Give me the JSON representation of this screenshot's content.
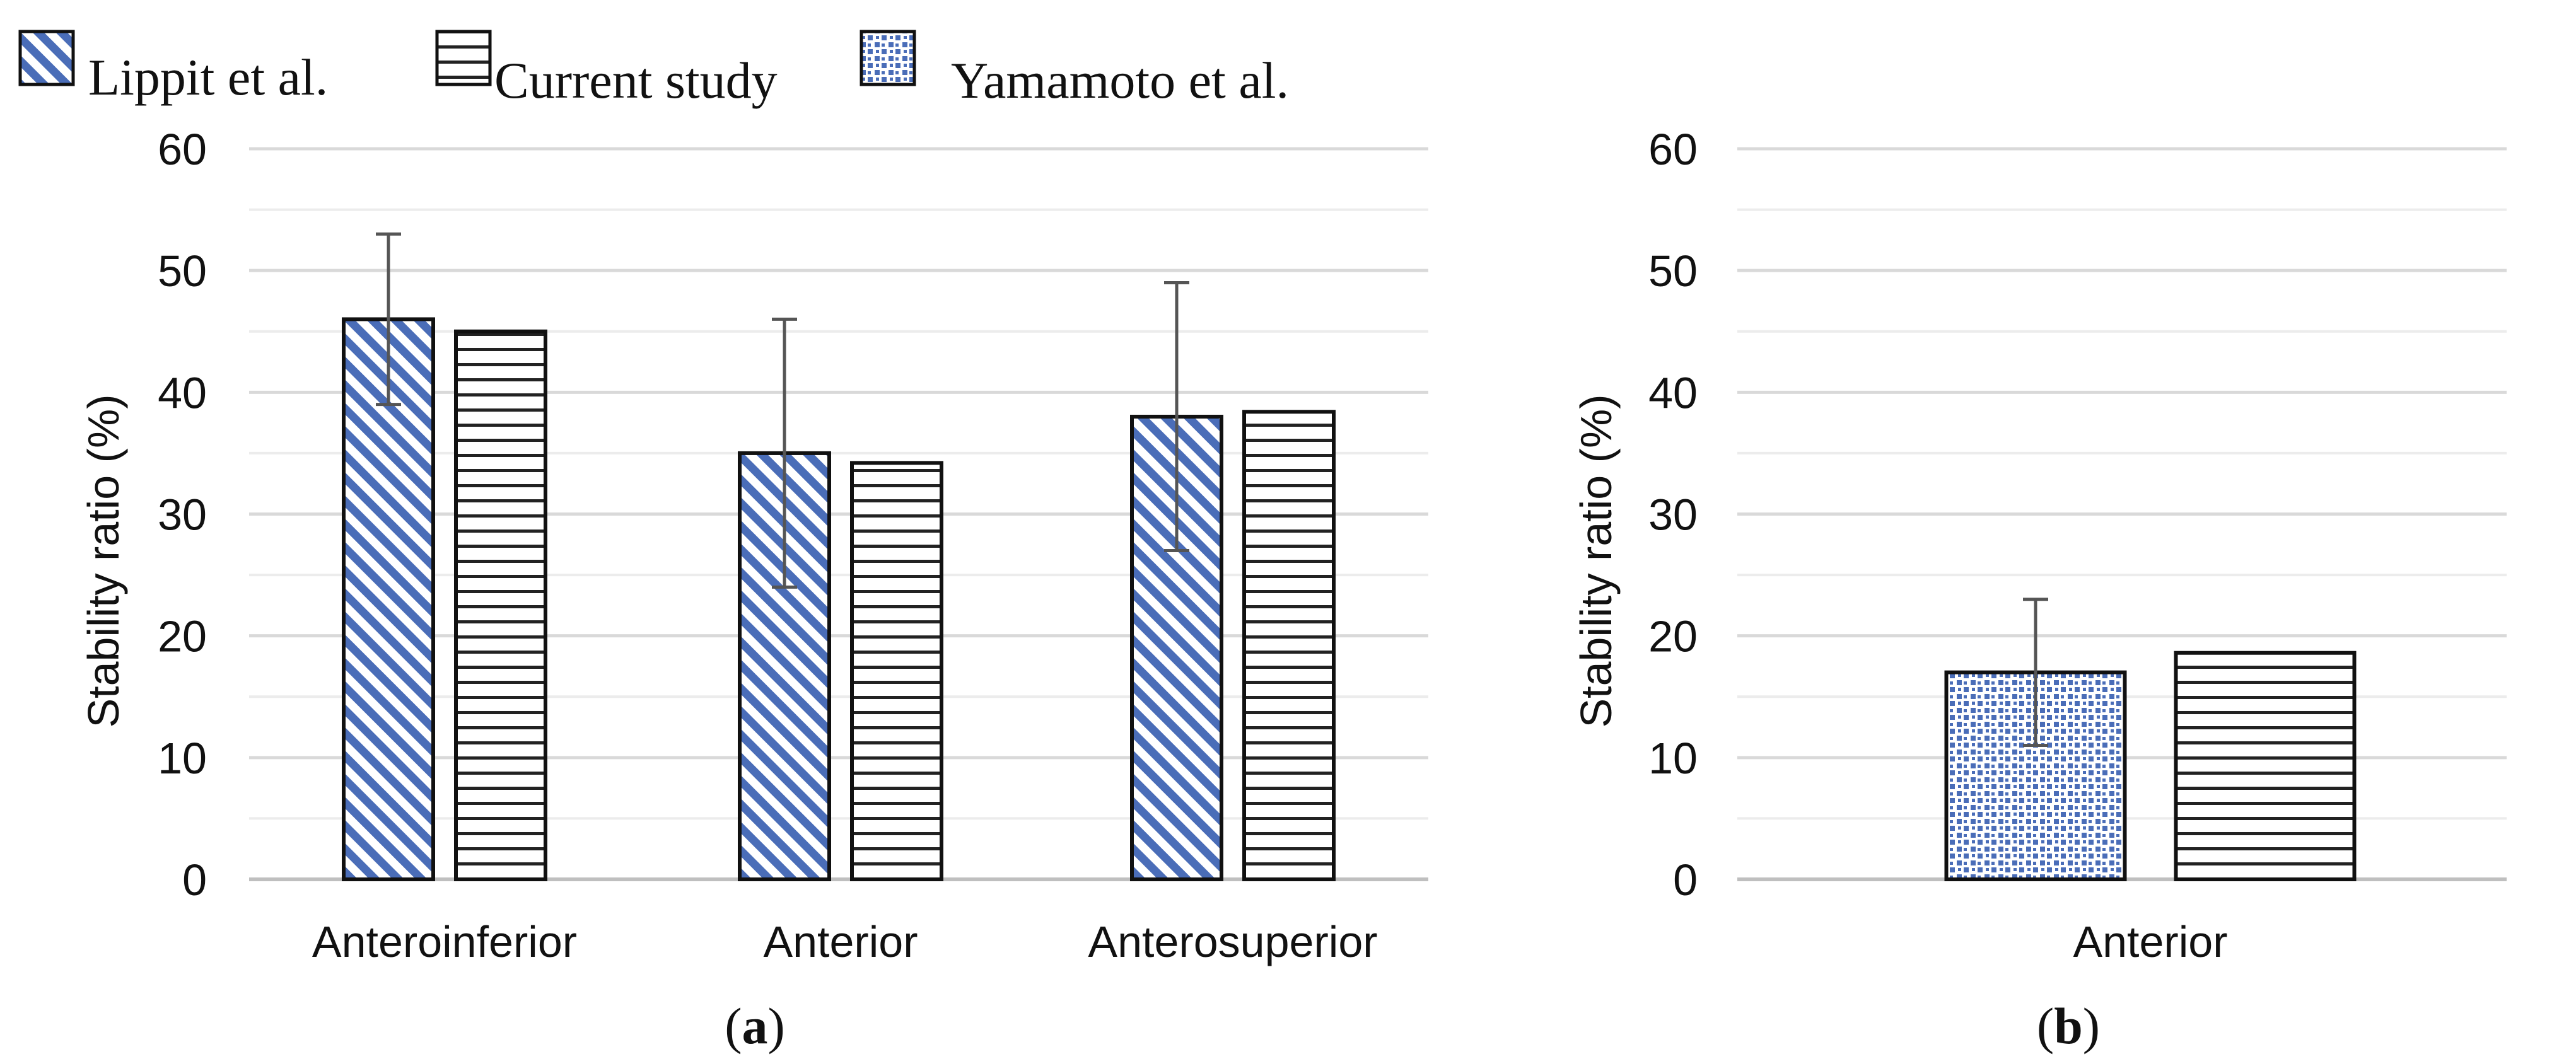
{
  "legend": [
    {
      "label": "Lippit et al.",
      "pattern": "diag"
    },
    {
      "label": "Current study",
      "pattern": "hlines"
    },
    {
      "label": "Yamamoto et al.",
      "pattern": "dots"
    }
  ],
  "colors": {
    "hatch": "#4a6db8",
    "grid": "#d9d9d9",
    "axis": "#111111",
    "errorbar": "#555555"
  },
  "chart_data": [
    {
      "type": "bar",
      "panel": "a",
      "caption": {
        "open": "(",
        "letter": "a",
        "close": ")"
      },
      "ylabel": "Stability ratio (%)",
      "ylim": [
        0,
        60
      ],
      "yticks": [
        0,
        10,
        20,
        30,
        40,
        50,
        60
      ],
      "categories": [
        "Anteroinferior",
        "Anterior",
        "Anterosuperior"
      ],
      "series": [
        {
          "name": "Lippit et al.",
          "pattern": "diag",
          "values": [
            46,
            35,
            38
          ],
          "error": [
            7,
            11,
            11
          ]
        },
        {
          "name": "Current study",
          "pattern": "hlines",
          "values": [
            45,
            34.2,
            38.4
          ]
        }
      ]
    },
    {
      "type": "bar",
      "panel": "b",
      "caption": {
        "open": "(",
        "letter": "b",
        "close": ")"
      },
      "ylabel": "Stability ratio (%)",
      "ylim": [
        0,
        60
      ],
      "yticks": [
        0,
        10,
        20,
        30,
        40,
        50,
        60
      ],
      "categories": [
        "Anterior"
      ],
      "series": [
        {
          "name": "Yamamoto et al.",
          "pattern": "dots",
          "values": [
            17
          ],
          "error": [
            6
          ]
        },
        {
          "name": "Current study",
          "pattern": "hlines",
          "values": [
            18.6
          ]
        }
      ]
    }
  ]
}
